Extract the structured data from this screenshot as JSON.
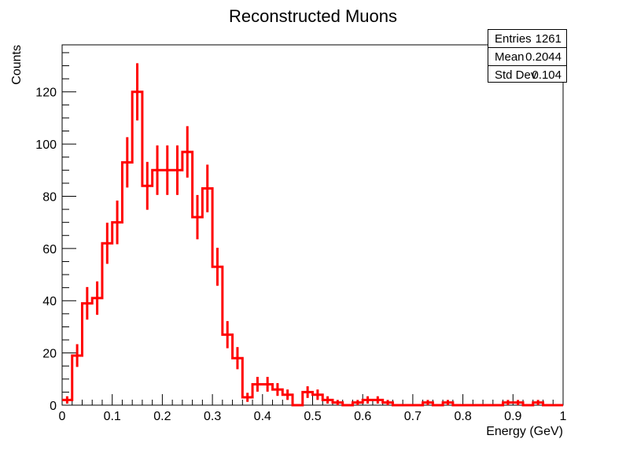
{
  "chart_data": {
    "type": "histogram",
    "title": "Reconstructed Muons",
    "xlabel": "Energy (GeV)",
    "ylabel": "Counts",
    "xlim": [
      0,
      1
    ],
    "ylim": [
      0,
      138
    ],
    "x_ticks": [
      "0",
      "0.1",
      "0.2",
      "0.3",
      "0.4",
      "0.5",
      "0.6",
      "0.7",
      "0.8",
      "0.9",
      "1"
    ],
    "y_ticks": [
      "0",
      "20",
      "40",
      "60",
      "80",
      "100",
      "120"
    ],
    "bin_width": 0.0167,
    "series": [
      {
        "color": "#ff0000",
        "values": [
          2,
          19,
          39,
          41,
          62,
          70,
          93,
          120,
          84,
          90,
          90,
          90,
          97,
          72,
          83,
          53,
          27,
          18,
          3,
          8,
          8,
          6,
          4,
          0,
          5,
          4,
          2,
          1,
          0,
          1,
          2,
          2,
          1,
          0,
          0,
          0,
          1,
          0,
          1,
          0,
          0,
          0,
          0,
          0,
          1,
          1,
          0,
          1,
          0,
          0
        ]
      }
    ],
    "stats_box": {
      "rows": [
        {
          "label": "Entries",
          "value": "1261"
        },
        {
          "label": "Mean",
          "value": "0.2044"
        },
        {
          "label": "Std Dev",
          "value": "0.104"
        }
      ]
    }
  }
}
